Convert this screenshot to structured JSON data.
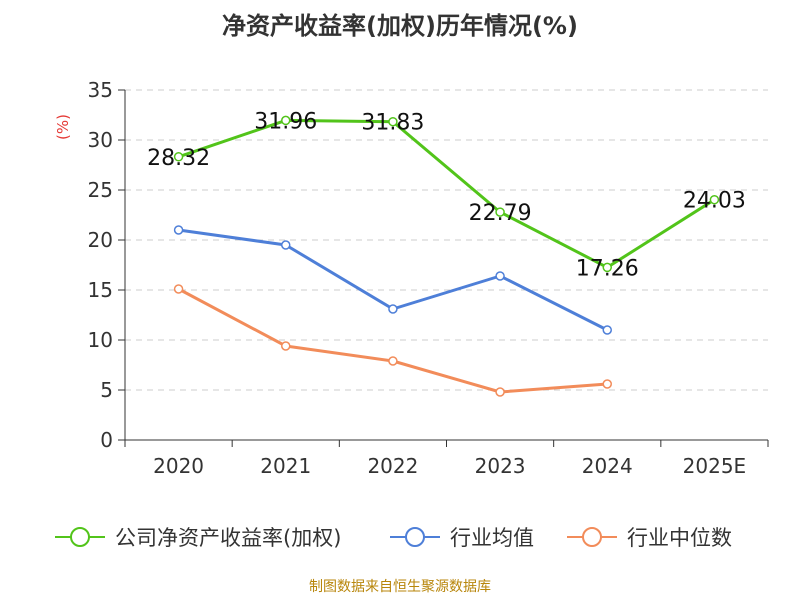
{
  "chart_data": {
    "type": "line",
    "title": "净资产收益率(加权)历年情况(%)",
    "ylabel": "(%)",
    "xlabel": "",
    "categories": [
      "2020",
      "2021",
      "2022",
      "2023",
      "2024",
      "2025E"
    ],
    "ylim": [
      0,
      35
    ],
    "yticks": [
      0,
      5,
      10,
      15,
      20,
      25,
      30,
      35
    ],
    "grid": true,
    "legend_position": "bottom",
    "series": [
      {
        "name": "公司净资产收益率(加权)",
        "color": "#52c41a",
        "values": [
          28.32,
          31.96,
          31.83,
          22.79,
          17.26,
          24.03
        ],
        "show_labels": true
      },
      {
        "name": "行业均值",
        "color": "#4e7fd8",
        "values": [
          21.0,
          19.5,
          13.1,
          16.4,
          11.0,
          null
        ],
        "show_labels": false
      },
      {
        "name": "行业中位数",
        "color": "#f28c5a",
        "values": [
          15.1,
          9.4,
          7.9,
          4.8,
          5.6,
          null
        ],
        "show_labels": false
      }
    ]
  },
  "footer": {
    "source": "制图数据来自恒生聚源数据库"
  }
}
